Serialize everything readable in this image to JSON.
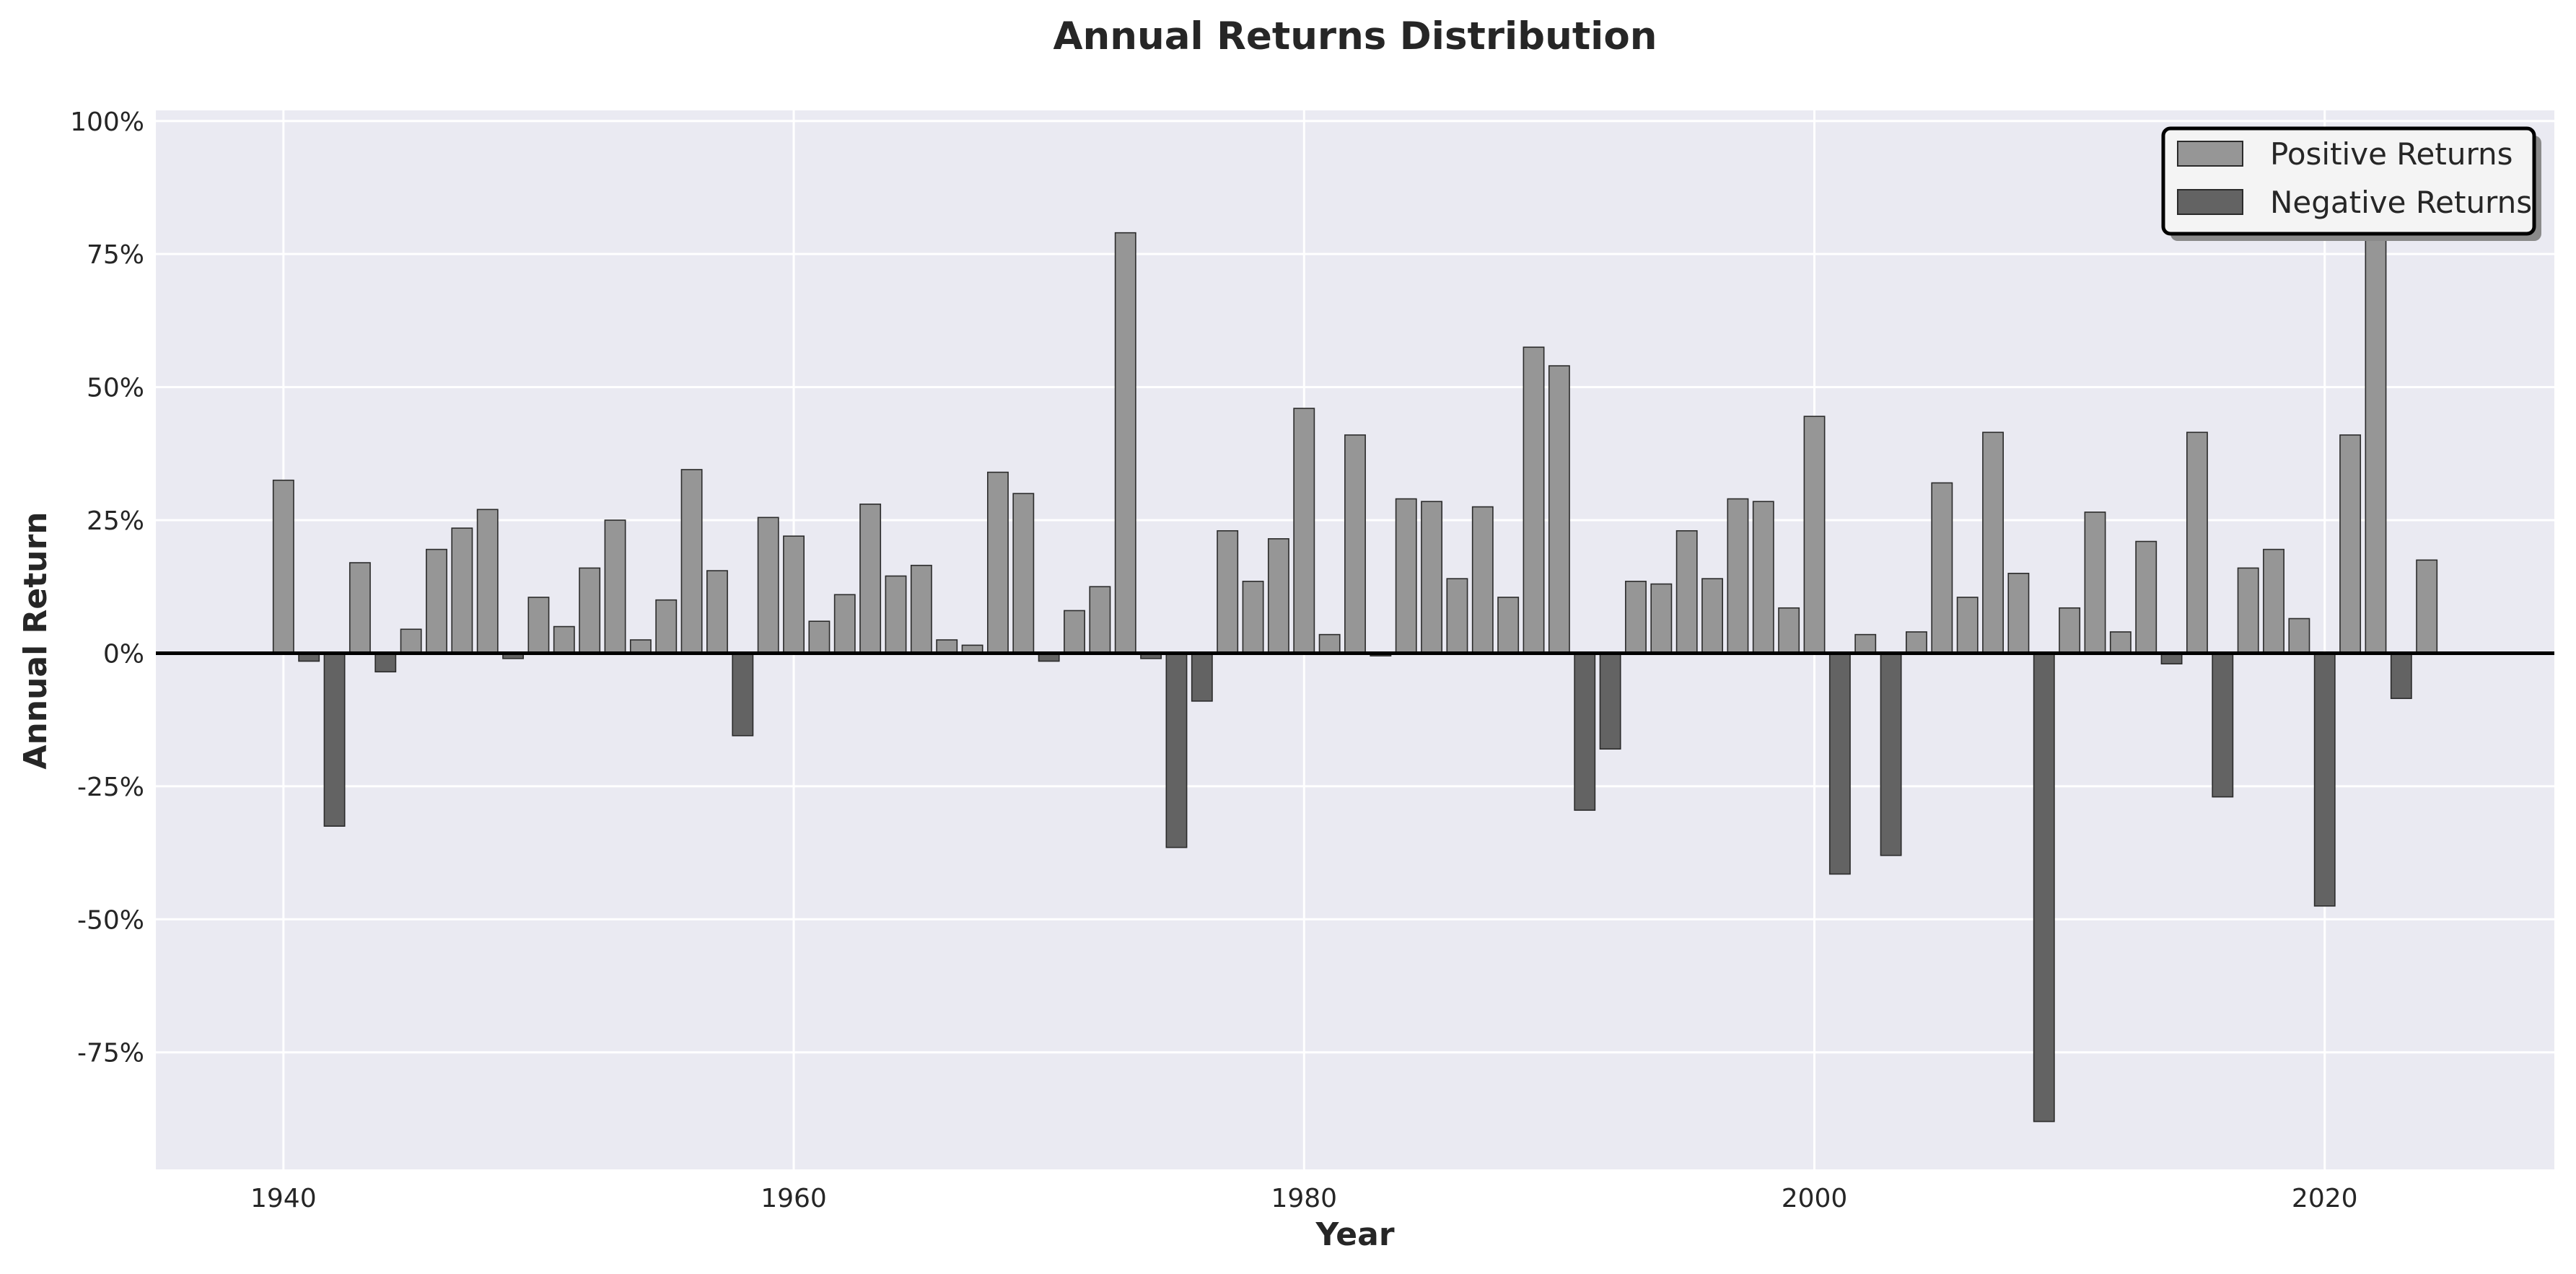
{
  "chart_data": {
    "type": "bar",
    "title": "Annual Returns Distribution",
    "xlabel": "Year",
    "ylabel": "Annual Return",
    "xlim": [
      1935,
      2029
    ],
    "ylim": [
      -97,
      102
    ],
    "x_ticks": [
      1940,
      1960,
      1980,
      2000,
      2020
    ],
    "y_ticks": [
      100,
      75,
      50,
      25,
      0,
      -25,
      -50,
      -75
    ],
    "y_tick_format": "percent",
    "grid": true,
    "legend": {
      "placement": "top-right",
      "entries": [
        "Positive Returns",
        "Negative Returns"
      ]
    },
    "colors": {
      "positive": "#969696",
      "negative": "#636363",
      "background": "#eaeaf2",
      "edge": "#2b2b2b"
    },
    "series": [
      {
        "name": "Annual Return",
        "x": [
          1940,
          1941,
          1942,
          1943,
          1944,
          1945,
          1946,
          1947,
          1948,
          1949,
          1950,
          1951,
          1952,
          1953,
          1954,
          1955,
          1956,
          1957,
          1958,
          1959,
          1960,
          1961,
          1962,
          1963,
          1964,
          1965,
          1966,
          1967,
          1968,
          1969,
          1970,
          1971,
          1972,
          1973,
          1974,
          1975,
          1976,
          1977,
          1978,
          1979,
          1980,
          1981,
          1982,
          1983,
          1984,
          1985,
          1986,
          1987,
          1988,
          1989,
          1990,
          1991,
          1992,
          1993,
          1994,
          1995,
          1996,
          1997,
          1998,
          1999,
          2000,
          2001,
          2002,
          2003,
          2004,
          2005,
          2006,
          2007,
          2008,
          2009,
          2010,
          2011,
          2012,
          2013,
          2014,
          2015,
          2016,
          2017,
          2018,
          2019,
          2020,
          2021,
          2022,
          2023,
          2024
        ],
        "values": [
          32.5,
          -1.5,
          -32.5,
          17,
          -3.5,
          4.5,
          19.5,
          23.5,
          27,
          -1,
          10.5,
          5,
          16,
          25,
          2.5,
          10,
          34.5,
          15.5,
          -15.5,
          25.5,
          22,
          6,
          11,
          28,
          14.5,
          16.5,
          2.5,
          1.5,
          34,
          30,
          -1.5,
          8,
          12.5,
          79,
          -1,
          -36.5,
          -9,
          23,
          13.5,
          21.5,
          46,
          3.5,
          41,
          -0.5,
          29,
          28.5,
          14,
          27.5,
          10.5,
          57.5,
          54,
          -29.5,
          -18,
          13.5,
          13,
          23,
          14,
          29,
          28.5,
          8.5,
          44.5,
          -41.5,
          3.5,
          -38,
          4,
          32,
          10.5,
          41.5,
          15,
          -88,
          8.5,
          26.5,
          4,
          21,
          -2,
          41.5,
          -27,
          16,
          19.5,
          6.5,
          -47.5,
          41,
          84,
          -8.5,
          17.5
        ]
      }
    ]
  }
}
